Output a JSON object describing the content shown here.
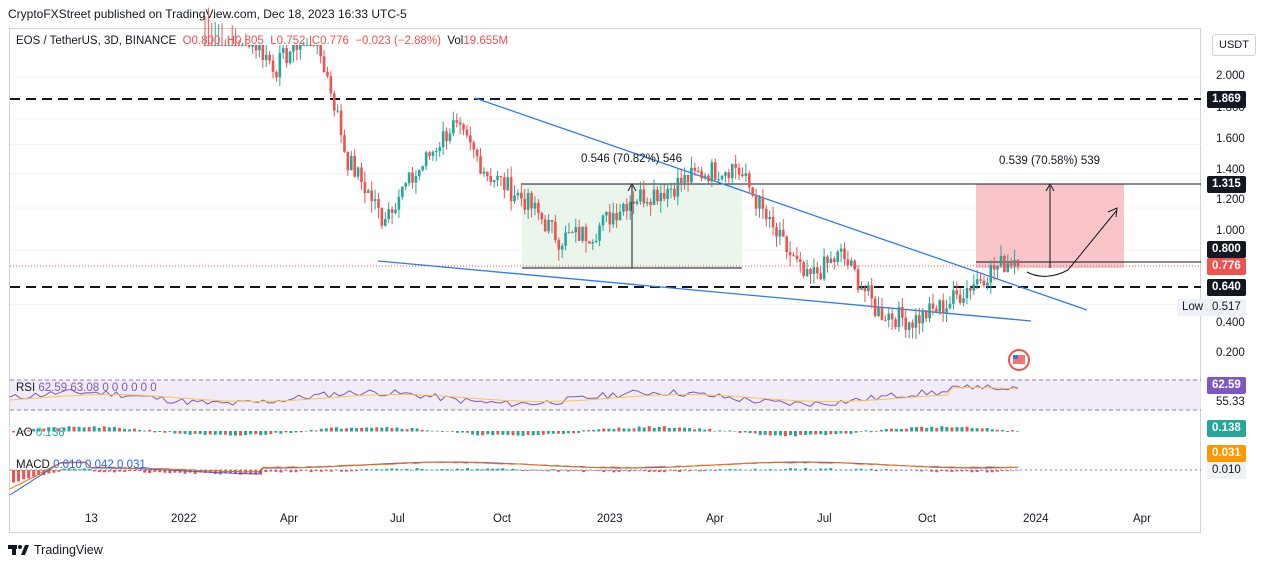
{
  "publisher_line": "CryptoFXStreet published on TradingView.com, Dec 18, 2023 16:33 UTC-5",
  "legend": {
    "symbol": "EOS / TetherUS, 3D, BINANCE",
    "open": "O0.800",
    "high": "H0.805",
    "low": "L0.752",
    "close": "C0.776",
    "change": "−0.023 (−2.88%)",
    "volume_label": "Vol",
    "volume": "19.655M"
  },
  "currency": "USDT",
  "colors": {
    "up": "#26a69a",
    "down": "#ef5350",
    "trendline": "#3179f5",
    "rsi": "#7e57c2",
    "rsi_ma": "#f7c948",
    "macd": "#2962ff",
    "signal": "#ff6d00"
  },
  "price_tags": {
    "level_1869": "1.869",
    "level_1315": "1.315",
    "level_0800": "0.800",
    "last": "0.776",
    "level_0640": "0.640",
    "low_label": "Low",
    "low_value": "0.517"
  },
  "annotations": {
    "range_measure": "0.546 (70.82%) 546",
    "target_measure": "0.539 (70.58%) 539"
  },
  "indicators": {
    "rsi_label": "RSI",
    "rsi_values": "62.59  63.08  0  0  0  0  0  0",
    "rsi_tag": "62.59",
    "rsi_ma_tag": "55.33",
    "ao_label": "AO",
    "ao_value": "0.138",
    "ao_tag": "0.138",
    "macd_label": "MACD",
    "macd_values": "0.010  0.042  0.031",
    "macd_tag_signal": "0.031",
    "macd_tag_hist": "0.010"
  },
  "footer": "TradingView",
  "chart_data": {
    "type": "candlestick",
    "title": "EOS / TetherUS, 3D, BINANCE",
    "y_axis": {
      "scale": "log",
      "ticks": [
        2.0,
        1.8,
        1.6,
        1.4,
        1.2,
        1.0,
        0.8,
        0.6,
        0.4,
        0.2
      ]
    },
    "x_ticks": [
      "13",
      "2022",
      "Apr",
      "Jul",
      "Oct",
      "2023",
      "Apr",
      "Jul",
      "Oct",
      "2024",
      "Apr"
    ],
    "horizontal_levels": [
      1.869,
      1.315,
      0.8,
      0.64
    ],
    "last_price": 0.776,
    "low": 0.517,
    "series": [
      {
        "name": "close",
        "x": [
          "2022-01",
          "2022-02",
          "2022-03",
          "2022-04",
          "2022-05",
          "2022-06",
          "2022-07",
          "2022-08",
          "2022-09",
          "2022-10",
          "2022-11",
          "2022-12",
          "2023-01",
          "2023-02",
          "2023-03",
          "2023-04",
          "2023-05",
          "2023-06",
          "2023-07",
          "2023-08",
          "2023-09",
          "2023-10",
          "2023-11",
          "2023-12"
        ],
        "values": [
          2.9,
          2.6,
          2.1,
          2.6,
          1.3,
          0.95,
          1.2,
          1.55,
          1.2,
          1.05,
          0.85,
          0.88,
          1.05,
          1.1,
          1.2,
          1.25,
          0.9,
          0.68,
          0.78,
          0.58,
          0.55,
          0.6,
          0.7,
          0.776
        ]
      }
    ],
    "rsi": {
      "value": 62.59,
      "ma": 55.33
    },
    "ao": {
      "value": 0.138
    },
    "macd": {
      "macd": 0.042,
      "signal": 0.031,
      "histogram": 0.01
    }
  }
}
